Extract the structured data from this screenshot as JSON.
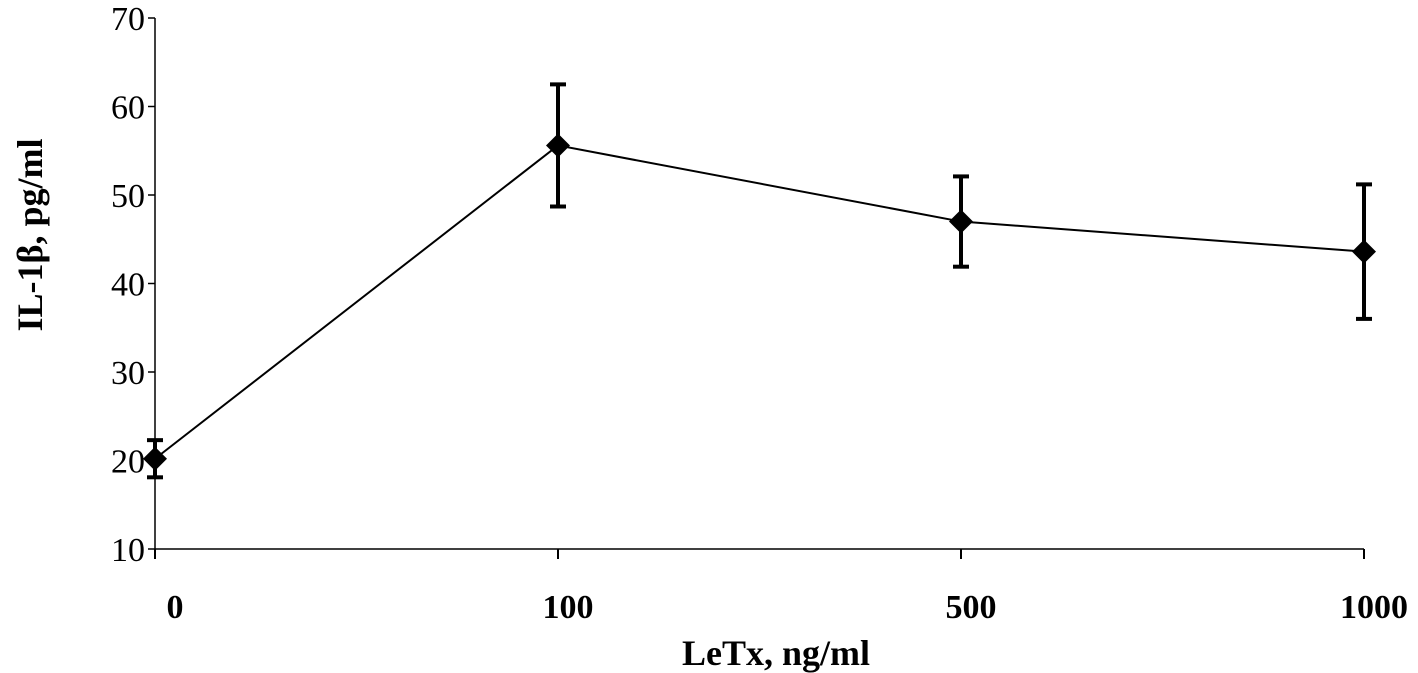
{
  "chart_data": {
    "type": "line",
    "title": "",
    "xlabel": "LeTx, ng/ml",
    "ylabel": "IL-1β,  pg/ml",
    "categories": [
      "0",
      "100",
      "500",
      "1000"
    ],
    "series": [
      {
        "values": [
          20.2,
          55.6,
          47.0,
          43.6
        ],
        "error": [
          2.1,
          6.9,
          5.1,
          7.6
        ],
        "marker": "diamond",
        "color": "#000000"
      }
    ],
    "ylim": [
      10,
      70
    ],
    "yticks": [
      "10",
      "20",
      "30",
      "40",
      "50",
      "60",
      "70"
    ],
    "grid": false,
    "legend": "none"
  }
}
